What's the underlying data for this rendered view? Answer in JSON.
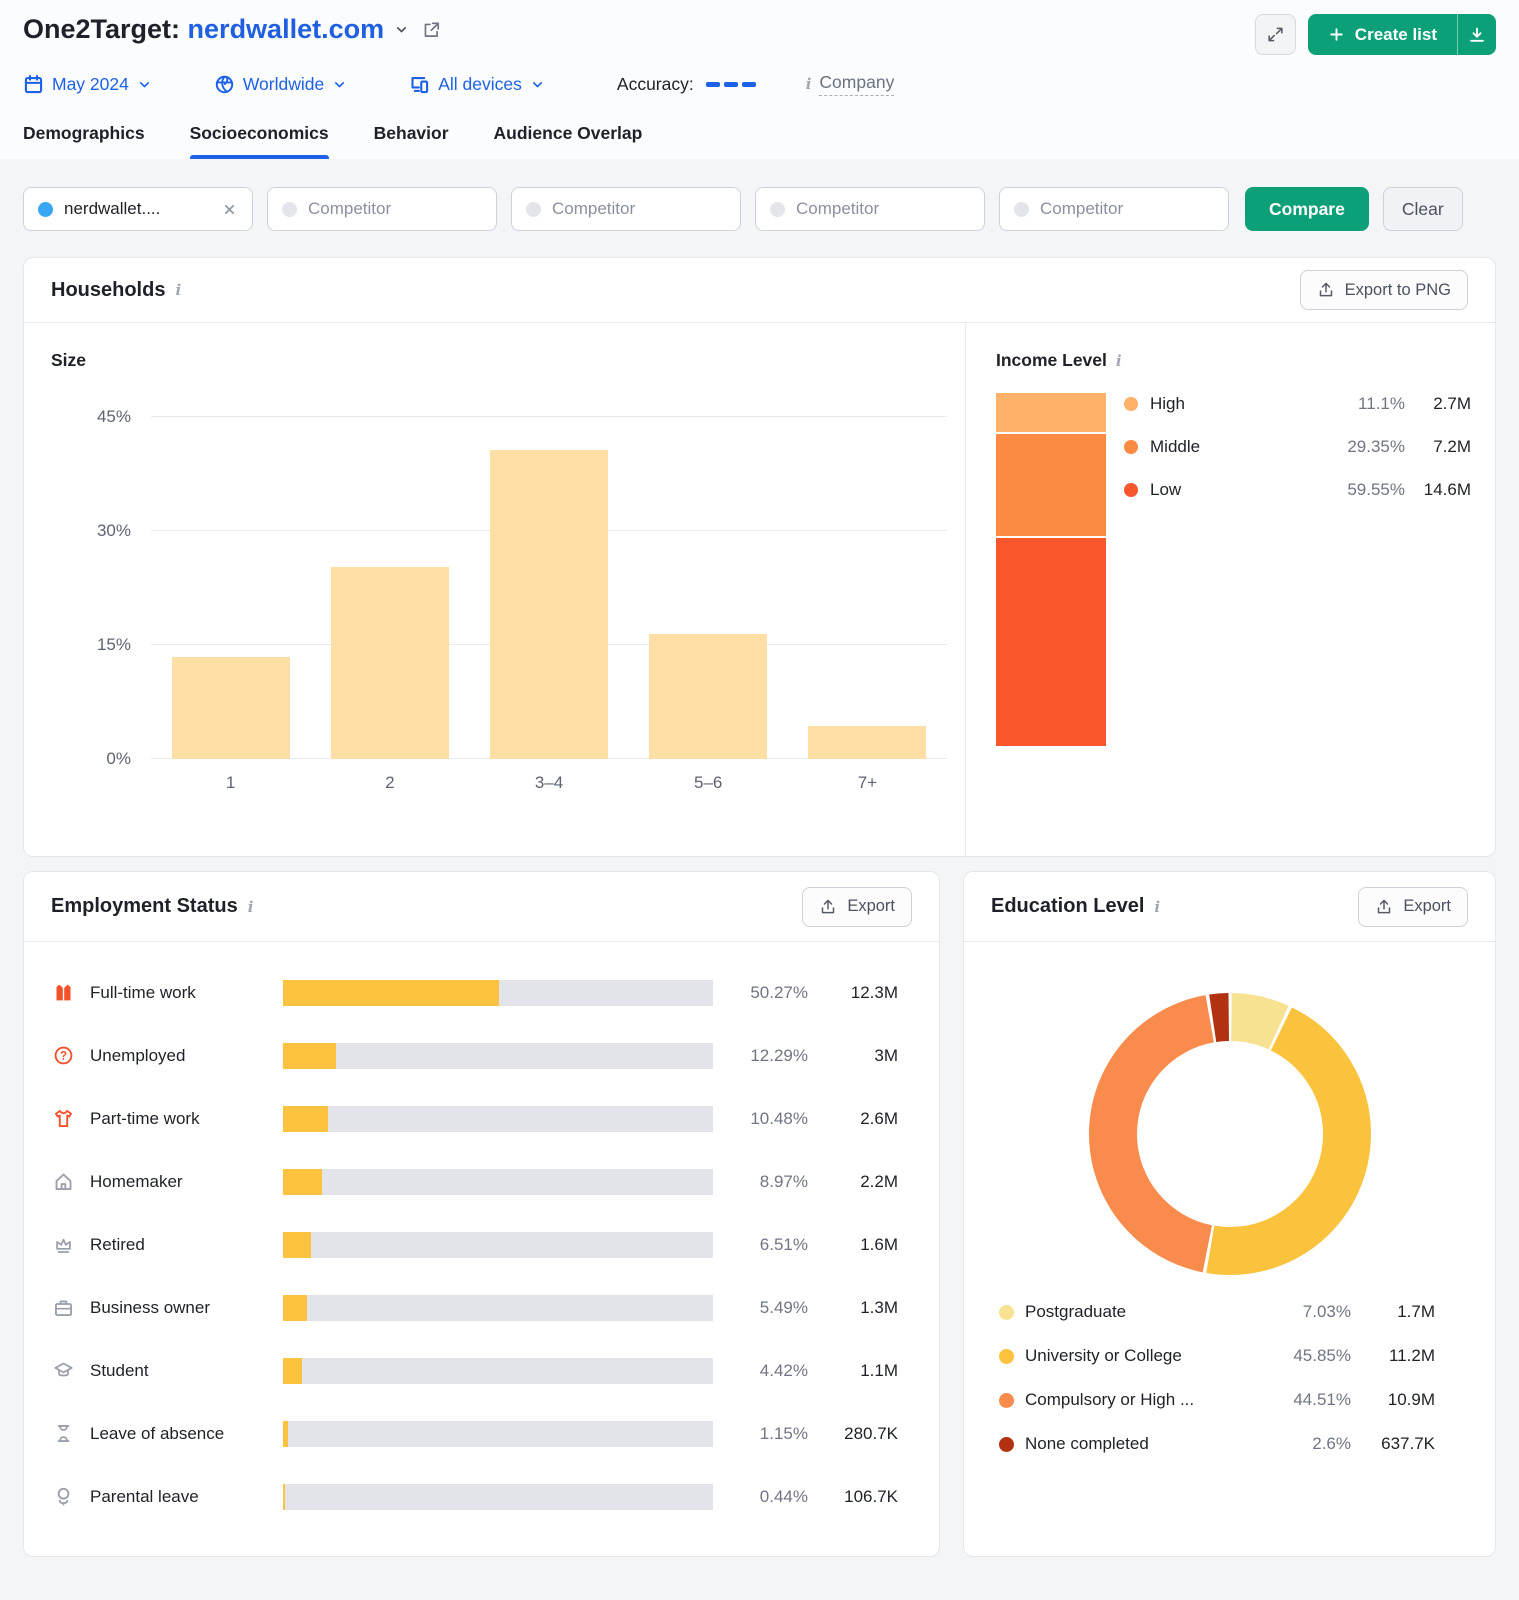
{
  "header": {
    "title_prefix": "One2Target:",
    "domain": "nerdwallet.com",
    "create_list_label": "Create list",
    "filters": {
      "date": "May 2024",
      "region": "Worldwide",
      "devices": "All devices",
      "accuracy_label": "Accuracy:",
      "company_label": "Company"
    },
    "tabs": [
      {
        "label": "Demographics",
        "active": false
      },
      {
        "label": "Socioeconomics",
        "active": true
      },
      {
        "label": "Behavior",
        "active": false
      },
      {
        "label": "Audience Overlap",
        "active": false
      }
    ]
  },
  "compare_bar": {
    "selected_domain": "nerdwallet....",
    "selected_dot_color": "#3AA7F5",
    "placeholders": [
      "Competitor",
      "Competitor",
      "Competitor",
      "Competitor"
    ],
    "compare_label": "Compare",
    "clear_label": "Clear"
  },
  "households": {
    "title": "Households",
    "export_label": "Export to PNG",
    "size_chart": {
      "title": "Size",
      "type": "bar",
      "categories": [
        "1",
        "2",
        "3–4",
        "5–6",
        "7+"
      ],
      "values": [
        13.4,
        25.2,
        40.7,
        16.4,
        4.3
      ],
      "y_ticks": [
        0,
        15,
        30,
        45
      ],
      "y_tick_labels": [
        "0%",
        "15%",
        "30%",
        "45%"
      ],
      "ylim": [
        0,
        45
      ],
      "bar_color": "#FFDFA6"
    },
    "income_level": {
      "title": "Income Level",
      "type": "stacked-bar",
      "segments": [
        {
          "label": "High",
          "pct": 11.1,
          "pct_label": "11.1%",
          "value": "2.7M",
          "color": "#FFB169"
        },
        {
          "label": "Middle",
          "pct": 29.35,
          "pct_label": "29.35%",
          "value": "7.2M",
          "color": "#FB8B43"
        },
        {
          "label": "Low",
          "pct": 59.55,
          "pct_label": "59.55%",
          "value": "14.6M",
          "color": "#F9572B"
        }
      ]
    }
  },
  "employment": {
    "title": "Employment Status",
    "export_label": "Export",
    "type": "bar",
    "bar_fill": "#FDC23F",
    "bar_track": "#E3E4EA",
    "rows": [
      {
        "icon": "fulltime-work-icon",
        "icon_color": "#F4512B",
        "label": "Full-time work",
        "pct": 50.27,
        "pct_label": "50.27%",
        "value": "12.3M"
      },
      {
        "icon": "unemployed-icon",
        "icon_color": "#F4512B",
        "label": "Unemployed",
        "pct": 12.29,
        "pct_label": "12.29%",
        "value": "3M"
      },
      {
        "icon": "parttime-work-icon",
        "icon_color": "#F4512B",
        "label": "Part-time work",
        "pct": 10.48,
        "pct_label": "10.48%",
        "value": "2.6M"
      },
      {
        "icon": "homemaker-icon",
        "icon_color": "#9AA0AA",
        "label": "Homemaker",
        "pct": 8.97,
        "pct_label": "8.97%",
        "value": "2.2M"
      },
      {
        "icon": "retired-icon",
        "icon_color": "#9AA0AA",
        "label": "Retired",
        "pct": 6.51,
        "pct_label": "6.51%",
        "value": "1.6M"
      },
      {
        "icon": "business-owner-icon",
        "icon_color": "#9AA0AA",
        "label": "Business owner",
        "pct": 5.49,
        "pct_label": "5.49%",
        "value": "1.3M"
      },
      {
        "icon": "student-icon",
        "icon_color": "#9AA0AA",
        "label": "Student",
        "pct": 4.42,
        "pct_label": "4.42%",
        "value": "1.1M"
      },
      {
        "icon": "leave-of-absence-icon",
        "icon_color": "#9AA0AA",
        "label": "Leave of absence",
        "pct": 1.15,
        "pct_label": "1.15%",
        "value": "280.7K"
      },
      {
        "icon": "parental-leave-icon",
        "icon_color": "#9AA0AA",
        "label": "Parental leave",
        "pct": 0.44,
        "pct_label": "0.44%",
        "value": "106.7K"
      }
    ]
  },
  "education": {
    "title": "Education Level",
    "export_label": "Export",
    "type": "donut",
    "segments": [
      {
        "label": "Postgraduate",
        "pct": 7.03,
        "pct_label": "7.03%",
        "value": "1.7M",
        "color": "#F7E291"
      },
      {
        "label": "University or College",
        "pct": 45.85,
        "pct_label": "45.85%",
        "value": "11.2M",
        "color": "#FBC23D"
      },
      {
        "label": "Compulsory or High ...",
        "pct": 44.51,
        "pct_label": "44.51%",
        "value": "10.9M",
        "color": "#F98B4D"
      },
      {
        "label": "None completed",
        "pct": 2.6,
        "pct_label": "2.6%",
        "value": "637.7K",
        "color": "#B23110"
      }
    ]
  },
  "chart_data": [
    {
      "type": "bar",
      "title": "Households — Size",
      "categories": [
        "1",
        "2",
        "3–4",
        "5–6",
        "7+"
      ],
      "values": [
        13.4,
        25.2,
        40.7,
        16.4,
        4.3
      ],
      "ylabel": "%",
      "ylim": [
        0,
        45
      ],
      "grid": true
    },
    {
      "type": "bar",
      "title": "Income Level (stacked)",
      "categories": [
        "High",
        "Middle",
        "Low"
      ],
      "values": [
        11.1,
        29.35,
        59.55
      ],
      "labels": [
        "2.7M",
        "7.2M",
        "14.6M"
      ]
    },
    {
      "type": "bar",
      "title": "Employment Status",
      "categories": [
        "Full-time work",
        "Unemployed",
        "Part-time work",
        "Homemaker",
        "Retired",
        "Business owner",
        "Student",
        "Leave of absence",
        "Parental leave"
      ],
      "values": [
        50.27,
        12.29,
        10.48,
        8.97,
        6.51,
        5.49,
        4.42,
        1.15,
        0.44
      ],
      "labels": [
        "12.3M",
        "3M",
        "2.6M",
        "2.2M",
        "1.6M",
        "1.3M",
        "1.1M",
        "280.7K",
        "106.7K"
      ]
    },
    {
      "type": "pie",
      "title": "Education Level",
      "categories": [
        "Postgraduate",
        "University or College",
        "Compulsory or High ...",
        "None completed"
      ],
      "values": [
        7.03,
        45.85,
        44.51,
        2.6
      ],
      "labels": [
        "1.7M",
        "11.2M",
        "10.9M",
        "637.7K"
      ],
      "legend_position": "bottom"
    }
  ]
}
